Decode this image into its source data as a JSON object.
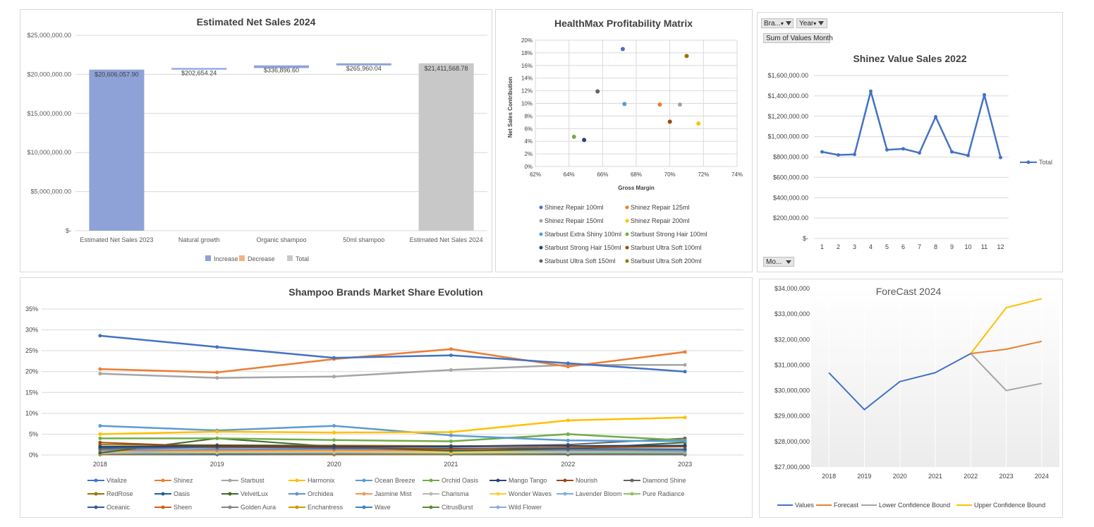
{
  "colors": {
    "increase": "#8ea2d8",
    "decrease": "#f4b183",
    "total": "#c8c8c8",
    "grid": "#d9d9d9",
    "axis_text": "#595959",
    "title": "#404040"
  },
  "waterfall": {
    "title": "Estimated Net Sales 2024",
    "legend": [
      "Increase",
      "Decrease",
      "Total"
    ],
    "chart_data": {
      "type": "bar",
      "subtype": "waterfall",
      "categories": [
        "Estimated Net Sales 2023",
        "Natural growth",
        "Organic shampoo",
        "50ml shampoo",
        "Estimated Net Sales 2024"
      ],
      "values": [
        20606057.9,
        202654.24,
        336896.6,
        265960.04,
        21411568.78
      ],
      "kinds": [
        "total",
        "increase",
        "increase",
        "increase",
        "total"
      ],
      "data_labels": [
        "$20,606,057.90",
        "$202,654.24",
        "$336,896.60",
        "$265,960.04",
        "$21,411,568.78"
      ],
      "ylim": [
        0,
        25000000
      ],
      "y_ticks": [
        "$-",
        "$5,000,000.00",
        "$10,000,000.00",
        "$15,000,000.00",
        "$20,000,000.00",
        "$25,000,000.00"
      ],
      "legend_position": "bottom",
      "grid": true
    }
  },
  "matrix": {
    "title": "HealthMax Profitability Matrix",
    "xlabel": "Gross Margin",
    "ylabel": "Net Sales Contribution",
    "x_ticks": [
      "62%",
      "64%",
      "66%",
      "68%",
      "70%",
      "72%",
      "74%"
    ],
    "y_ticks": [
      "0%",
      "2%",
      "4%",
      "6%",
      "8%",
      "10%",
      "12%",
      "14%",
      "16%",
      "18%",
      "20%"
    ],
    "chart_data": {
      "type": "scatter",
      "xlim": [
        62,
        74
      ],
      "ylim": [
        0,
        20
      ],
      "grid": true,
      "legend_position": "bottom",
      "series": [
        {
          "name": "Shinez Repair 100ml",
          "color": "#4472c4",
          "x": 67.2,
          "y": 18.6
        },
        {
          "name": "Shinez Repair 125ml",
          "color": "#ed7d31",
          "x": 69.4,
          "y": 9.8
        },
        {
          "name": "Shinez Repair 150ml",
          "color": "#a5a5a5",
          "x": 70.6,
          "y": 9.8
        },
        {
          "name": "Shinez Repair 200ml",
          "color": "#ffc000",
          "x": 71.7,
          "y": 6.8
        },
        {
          "name": "Starbust Extra Shiny 100ml",
          "color": "#5b9bd5",
          "x": 67.3,
          "y": 9.9
        },
        {
          "name": "Starbust Strong Hair 100ml",
          "color": "#70ad47",
          "x": 64.3,
          "y": 4.7
        },
        {
          "name": "Starbust Strong Hair 150ml",
          "color": "#264478",
          "x": 64.9,
          "y": 4.2
        },
        {
          "name": "Starbust Ultra Soft 100ml",
          "color": "#9e480e",
          "x": 70.0,
          "y": 7.1
        },
        {
          "name": "Starbust Ultra Soft 150ml",
          "color": "#636363",
          "x": 65.7,
          "y": 11.9
        },
        {
          "name": "Starbust Ultra Soft 200ml",
          "color": "#997300",
          "x": 71.0,
          "y": 17.5
        }
      ]
    }
  },
  "shinez": {
    "title": "Shinez Value Sales 2022",
    "controls": {
      "brand": "Bra...",
      "year": "Year",
      "values": "Sum of Values Month",
      "month": "Mo..."
    },
    "legend": "Total",
    "y_ticks": [
      "$-",
      "$200,000.00",
      "$400,000.00",
      "$600,000.00",
      "$800,000.00",
      "$1,000,000.00",
      "$1,200,000.00",
      "$1,400,000.00",
      "$1,600,000.00"
    ],
    "chart_data": {
      "type": "line",
      "x": [
        "1",
        "2",
        "3",
        "4",
        "5",
        "6",
        "7",
        "8",
        "9",
        "10",
        "11",
        "12"
      ],
      "series": [
        {
          "name": "Total",
          "color": "#4472c4",
          "values": [
            850000,
            820000,
            825000,
            1445000,
            870000,
            880000,
            840000,
            1195000,
            850000,
            815000,
            1410000,
            795000
          ]
        }
      ],
      "ylim": [
        0,
        1600000
      ],
      "grid": true,
      "legend_position": "right"
    }
  },
  "market": {
    "title": "Shampoo Brands Market Share Evolution",
    "y_ticks": [
      "0%",
      "5%",
      "10%",
      "15%",
      "20%",
      "25%",
      "30%",
      "35%"
    ],
    "chart_data": {
      "type": "line",
      "x": [
        "2018",
        "2019",
        "2020",
        "2021",
        "2022",
        "2023"
      ],
      "ylim": [
        0,
        35
      ],
      "grid": true,
      "legend_position": "bottom",
      "series": [
        {
          "name": "Vitalize",
          "color": "#4472c4",
          "values": [
            28.6,
            25.9,
            23.3,
            23.9,
            22.0,
            20.0
          ]
        },
        {
          "name": "Shinez",
          "color": "#ed7d31",
          "values": [
            20.6,
            19.8,
            23.0,
            25.4,
            21.2,
            24.7
          ]
        },
        {
          "name": "Starbust",
          "color": "#a5a5a5",
          "values": [
            19.5,
            18.5,
            18.8,
            20.4,
            21.6,
            21.6
          ]
        },
        {
          "name": "Harmonix",
          "color": "#ffc000",
          "values": [
            5.0,
            5.6,
            5.4,
            5.5,
            8.3,
            9.0
          ]
        },
        {
          "name": "Ocean Breeze",
          "color": "#5b9bd5",
          "values": [
            7.0,
            5.9,
            7.0,
            4.7,
            3.5,
            3.3
          ]
        },
        {
          "name": "Orchid Oasis",
          "color": "#70ad47",
          "values": [
            4.0,
            4.0,
            3.6,
            3.3,
            5.0,
            3.5
          ]
        },
        {
          "name": "Mango Tango",
          "color": "#264478",
          "values": [
            2.0,
            2.2,
            2.1,
            2.0,
            2.2,
            2.3
          ]
        },
        {
          "name": "Nourish",
          "color": "#9e480e",
          "values": [
            3.0,
            2.0,
            1.8,
            1.5,
            1.8,
            2.0
          ]
        },
        {
          "name": "Diamond Shine",
          "color": "#636363",
          "values": [
            1.5,
            1.8,
            2.0,
            2.1,
            2.5,
            4.0
          ]
        },
        {
          "name": "RedRose",
          "color": "#997300",
          "values": [
            2.5,
            2.4,
            2.3,
            2.2,
            2.2,
            2.1
          ]
        },
        {
          "name": "Oasis",
          "color": "#255e91",
          "values": [
            1.8,
            1.9,
            1.7,
            1.6,
            1.5,
            1.4
          ]
        },
        {
          "name": "VelvetLux",
          "color": "#43682b",
          "values": [
            0.5,
            4.0,
            2.0,
            1.0,
            1.5,
            3.0
          ]
        },
        {
          "name": "Orchidea",
          "color": "#698ed0",
          "values": [
            1.2,
            1.3,
            1.4,
            1.2,
            1.1,
            1.0
          ]
        },
        {
          "name": "Jasmine Mist",
          "color": "#f1975a",
          "values": [
            1.0,
            1.0,
            1.1,
            1.0,
            1.2,
            1.3
          ]
        },
        {
          "name": "Charisma",
          "color": "#b7b7b7",
          "values": [
            0.3,
            1.5,
            1.6,
            1.0,
            1.0,
            1.2
          ]
        },
        {
          "name": "Wonder Waves",
          "color": "#ffcd33",
          "values": [
            0.8,
            0.7,
            0.8,
            0.6,
            0.8,
            0.9
          ]
        },
        {
          "name": "Lavender Bloom",
          "color": "#7cafdd",
          "values": [
            0.6,
            0.6,
            0.5,
            0.5,
            0.6,
            0.7
          ]
        },
        {
          "name": "Pure Radiance",
          "color": "#8cc168",
          "values": [
            0.4,
            0.5,
            0.5,
            0.4,
            0.5,
            0.5
          ]
        },
        {
          "name": "Oceanic",
          "color": "#335aa1",
          "values": [
            0.3,
            0.3,
            0.4,
            0.3,
            0.3,
            0.4
          ]
        },
        {
          "name": "Sheen",
          "color": "#d26012",
          "values": [
            0.2,
            0.3,
            0.3,
            0.3,
            0.3,
            0.3
          ]
        },
        {
          "name": "Golden Aura",
          "color": "#848484",
          "values": [
            0.2,
            0.2,
            0.2,
            0.2,
            0.2,
            0.2
          ]
        },
        {
          "name": "Enchantress",
          "color": "#cc9a00",
          "values": [
            0.1,
            0.2,
            0.1,
            0.1,
            0.1,
            0.2
          ]
        },
        {
          "name": "Wave",
          "color": "#3d82c4",
          "values": [
            0.1,
            0.1,
            0.1,
            0.1,
            0.1,
            0.1
          ]
        },
        {
          "name": "CitrusBurst",
          "color": "#5a8b39",
          "values": [
            0.1,
            0.1,
            0.1,
            0.1,
            0.1,
            0.1
          ]
        },
        {
          "name": "Wild Flower",
          "color": "#8faadc",
          "values": [
            0.1,
            0.1,
            0.1,
            0.1,
            0.1,
            0.1
          ]
        }
      ]
    }
  },
  "forecast": {
    "title": "ForeCast 2024",
    "y_ticks": [
      "$27,000,000",
      "$28,000,000",
      "$29,000,000",
      "$30,000,000",
      "$31,000,000",
      "$32,000,000",
      "$33,000,000",
      "$34,000,000"
    ],
    "chart_data": {
      "type": "line",
      "x": [
        "2018",
        "2019",
        "2020",
        "2021",
        "2022",
        "2023",
        "2024"
      ],
      "ylim": [
        27000000,
        34000000
      ],
      "grid": true,
      "legend_position": "bottom",
      "series": [
        {
          "name": "Values",
          "color": "#4472c4",
          "values": [
            30700000,
            29250000,
            30350000,
            30700000,
            31450000,
            null,
            null
          ]
        },
        {
          "name": "Forecast",
          "color": "#ed7d31",
          "values": [
            null,
            null,
            null,
            null,
            31450000,
            31620000,
            31930000
          ]
        },
        {
          "name": "Lower Confidence Bound",
          "color": "#a5a5a5",
          "values": [
            null,
            null,
            null,
            null,
            31450000,
            30000000,
            30280000
          ]
        },
        {
          "name": "Upper Confidence Bound",
          "color": "#ffc000",
          "values": [
            null,
            null,
            null,
            null,
            31450000,
            33250000,
            33600000
          ]
        }
      ]
    }
  }
}
